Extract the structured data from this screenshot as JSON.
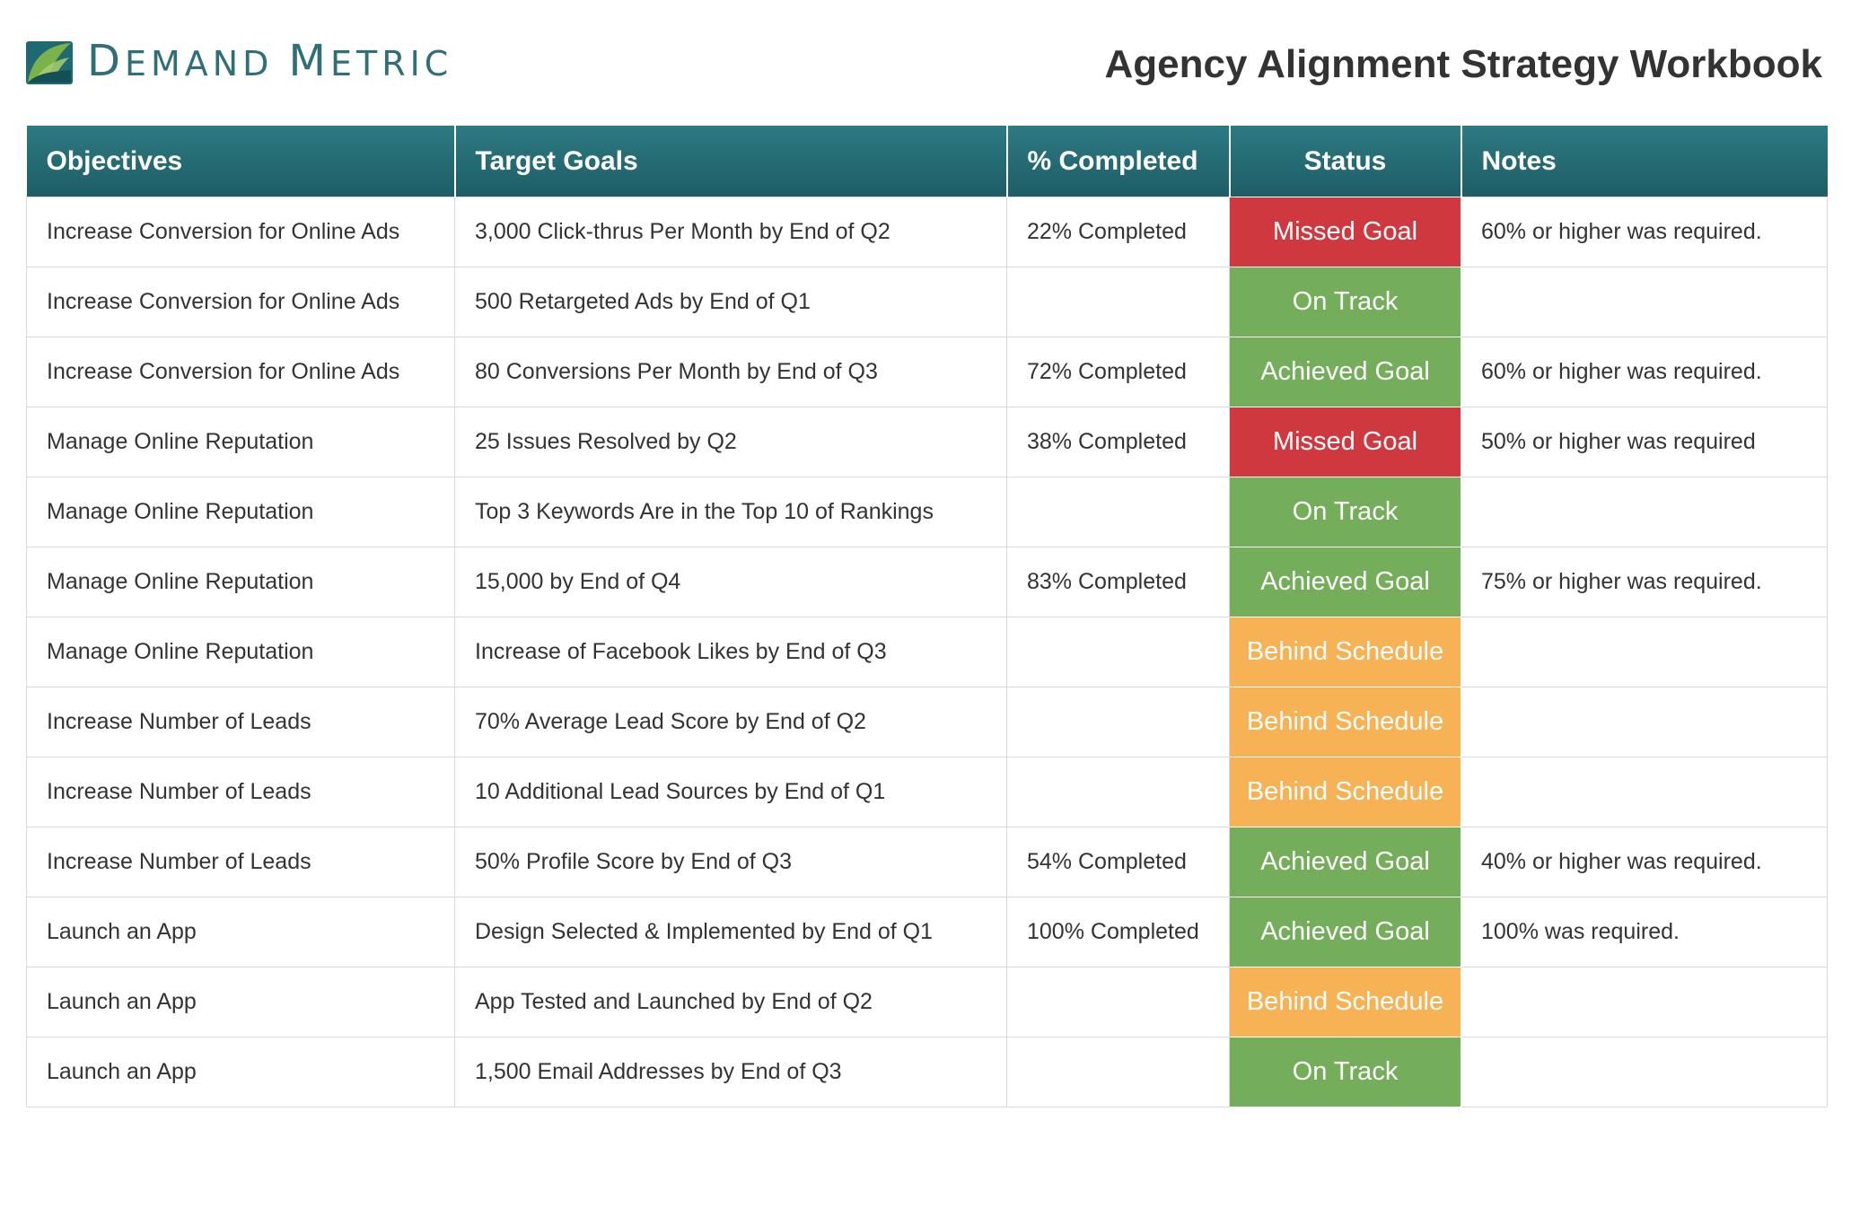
{
  "brand": {
    "name": "Demand Metric",
    "logo_icon": "leaf-logo-icon"
  },
  "title": "Agency Alignment Strategy Workbook",
  "colors": {
    "header": "#246a72",
    "Missed Goal": "#d0383f",
    "On Track": "#74ae5a",
    "Achieved Goal": "#74ae5a",
    "Behind Schedule": "#f6b254"
  },
  "table": {
    "headers": [
      "Objectives",
      "Target Goals",
      "% Completed",
      "Status",
      "Notes"
    ],
    "rows": [
      {
        "objective": "Increase Conversion for Online Ads",
        "goal": "3,000 Click-thrus Per Month by End of Q2",
        "completed": "22% Completed",
        "status": "Missed Goal",
        "notes": "60% or higher was required."
      },
      {
        "objective": "Increase Conversion for Online Ads",
        "goal": "500 Retargeted Ads by End of Q1",
        "completed": "",
        "status": "On Track",
        "notes": ""
      },
      {
        "objective": "Increase Conversion for Online Ads",
        "goal": "80 Conversions Per Month by End of Q3",
        "completed": "72% Completed",
        "status": "Achieved Goal",
        "notes": "60% or higher was required."
      },
      {
        "objective": "Manage Online Reputation",
        "goal": "25 Issues Resolved by Q2",
        "completed": "38% Completed",
        "status": "Missed Goal",
        "notes": "50% or higher was required"
      },
      {
        "objective": "Manage Online Reputation",
        "goal": "Top 3 Keywords Are in the Top 10 of Rankings",
        "completed": "",
        "status": "On Track",
        "notes": ""
      },
      {
        "objective": "Manage Online Reputation",
        "goal": "15,000 by End of Q4",
        "completed": "83% Completed",
        "status": "Achieved Goal",
        "notes": "75% or higher was required."
      },
      {
        "objective": "Manage Online Reputation",
        "goal": "Increase of Facebook Likes by End of Q3",
        "completed": "",
        "status": "Behind Schedule",
        "notes": ""
      },
      {
        "objective": "Increase Number of Leads",
        "goal": "70% Average Lead Score by End of Q2",
        "completed": "",
        "status": "Behind Schedule",
        "notes": ""
      },
      {
        "objective": "Increase Number of Leads",
        "goal": "10 Additional Lead Sources by End of Q1",
        "completed": "",
        "status": "Behind Schedule",
        "notes": ""
      },
      {
        "objective": "Increase Number of Leads",
        "goal": "50% Profile Score by End of Q3",
        "completed": "54% Completed",
        "status": "Achieved Goal",
        "notes": "40% or higher was required."
      },
      {
        "objective": "Launch an App",
        "goal": "Design Selected & Implemented by End of Q1",
        "completed": "100% Completed",
        "status": "Achieved Goal",
        "notes": "100% was required."
      },
      {
        "objective": "Launch an App",
        "goal": "App Tested and Launched by End of Q2",
        "completed": "",
        "status": "Behind Schedule",
        "notes": ""
      },
      {
        "objective": "Launch an App",
        "goal": "1,500 Email Addresses by End of Q3",
        "completed": "",
        "status": "On Track",
        "notes": ""
      }
    ]
  }
}
